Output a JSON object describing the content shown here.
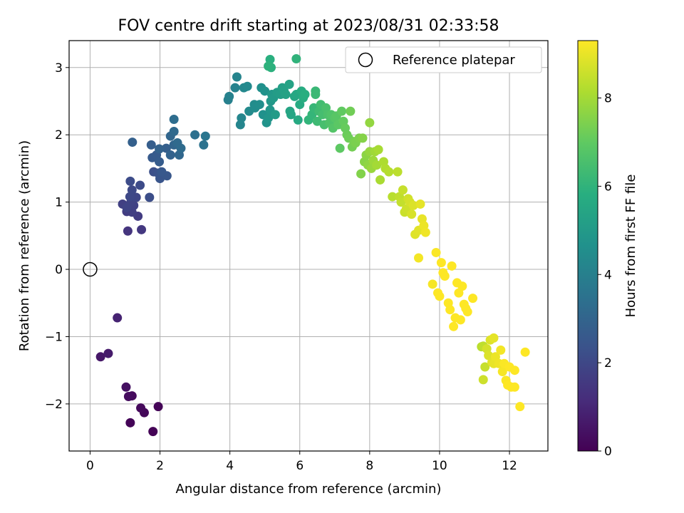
{
  "chart_data": {
    "type": "scatter",
    "title": "FOV centre drift starting at 2023/08/31 02:33:58",
    "xlabel": "Angular distance from reference (arcmin)",
    "ylabel": "Rotation from reference (arcmin)",
    "xlim": [
      -0.6,
      13.1
    ],
    "ylim": [
      -2.7,
      3.4
    ],
    "xticks": [
      0,
      2,
      4,
      6,
      8,
      10,
      12
    ],
    "yticks": [
      -2,
      -1,
      0,
      1,
      2,
      3
    ],
    "xtick_labels": [
      "0",
      "2",
      "4",
      "6",
      "8",
      "10",
      "12"
    ],
    "ytick_labels": [
      "−2",
      "−1",
      "0",
      "1",
      "2",
      "3"
    ],
    "grid": true,
    "legend": {
      "position": "top-right",
      "entries": [
        {
          "label": "Reference platepar",
          "marker": "open-circle",
          "x": 0,
          "y": 0
        }
      ]
    },
    "colorbar": {
      "label": "Hours from first FF file",
      "colormap": "viridis",
      "range": [
        0,
        9.3
      ],
      "ticks": [
        0,
        2,
        4,
        6,
        8
      ],
      "tick_labels": [
        "0",
        "2",
        "4",
        "6",
        "8"
      ]
    },
    "points": [
      [
        1.8,
        -2.41,
        0.05
      ],
      [
        1.15,
        -2.28,
        0.08
      ],
      [
        1.95,
        -2.04,
        0.1
      ],
      [
        1.55,
        -2.13,
        0.15
      ],
      [
        1.45,
        -2.06,
        0.2
      ],
      [
        1.2,
        -1.88,
        0.25
      ],
      [
        1.1,
        -1.89,
        0.3
      ],
      [
        1.03,
        -1.75,
        0.4
      ],
      [
        0.3,
        -1.3,
        0.6
      ],
      [
        0.52,
        -1.25,
        0.7
      ],
      [
        0.78,
        -0.72,
        0.9
      ],
      [
        1.08,
        0.57,
        1.4
      ],
      [
        1.47,
        0.59,
        1.5
      ],
      [
        1.37,
        0.79,
        1.6
      ],
      [
        1.05,
        0.86,
        1.65
      ],
      [
        1.2,
        0.85,
        1.7
      ],
      [
        0.93,
        0.97,
        1.75
      ],
      [
        1.25,
        0.95,
        1.8
      ],
      [
        1.17,
        1.0,
        1.85
      ],
      [
        1.05,
        0.92,
        1.9
      ],
      [
        1.32,
        1.07,
        1.95
      ],
      [
        1.14,
        1.08,
        2.0
      ],
      [
        1.2,
        1.18,
        2.05
      ],
      [
        1.43,
        1.25,
        2.1
      ],
      [
        1.15,
        1.31,
        2.15
      ],
      [
        1.7,
        1.07,
        2.2
      ],
      [
        1.82,
        1.45,
        2.25
      ],
      [
        1.95,
        1.43,
        2.35
      ],
      [
        2.0,
        1.35,
        2.45
      ],
      [
        2.2,
        1.39,
        2.5
      ],
      [
        2.05,
        1.45,
        2.55
      ],
      [
        1.78,
        1.66,
        2.6
      ],
      [
        1.9,
        1.7,
        2.65
      ],
      [
        1.98,
        1.6,
        2.7
      ],
      [
        1.75,
        1.85,
        2.75
      ],
      [
        2.18,
        1.8,
        2.8
      ],
      [
        1.21,
        1.89,
        2.85
      ],
      [
        1.98,
        1.79,
        2.9
      ],
      [
        2.3,
        1.7,
        2.95
      ],
      [
        2.4,
        1.85,
        3.0
      ],
      [
        2.3,
        1.98,
        3.05
      ],
      [
        2.55,
        1.7,
        3.1
      ],
      [
        2.4,
        2.05,
        3.15
      ],
      [
        2.5,
        1.88,
        3.2
      ],
      [
        2.6,
        1.8,
        3.25
      ],
      [
        2.4,
        2.23,
        3.3
      ],
      [
        3.0,
        2.0,
        3.4
      ],
      [
        3.25,
        1.85,
        3.5
      ],
      [
        3.3,
        1.98,
        3.6
      ],
      [
        3.95,
        2.52,
        4.0
      ],
      [
        3.98,
        2.57,
        4.05
      ],
      [
        4.15,
        2.7,
        4.1
      ],
      [
        4.2,
        2.86,
        4.15
      ],
      [
        4.3,
        2.15,
        4.2
      ],
      [
        4.33,
        2.25,
        4.25
      ],
      [
        4.4,
        2.7,
        4.3
      ],
      [
        4.5,
        2.72,
        4.35
      ],
      [
        4.55,
        2.35,
        4.4
      ],
      [
        4.7,
        2.45,
        4.45
      ],
      [
        4.72,
        2.4,
        4.5
      ],
      [
        4.85,
        2.45,
        4.55
      ],
      [
        4.9,
        2.7,
        4.6
      ],
      [
        4.95,
        2.3,
        4.65
      ],
      [
        5.0,
        2.65,
        4.7
      ],
      [
        5.05,
        2.18,
        4.75
      ],
      [
        5.1,
        2.25,
        4.8
      ],
      [
        5.15,
        2.37,
        4.85
      ],
      [
        5.17,
        2.5,
        4.9
      ],
      [
        5.2,
        2.6,
        4.95
      ],
      [
        5.25,
        2.55,
        5.0
      ],
      [
        5.3,
        2.3,
        5.05
      ],
      [
        5.35,
        2.63,
        5.1
      ],
      [
        5.45,
        2.6,
        5.15
      ],
      [
        5.5,
        2.7,
        5.2
      ],
      [
        5.55,
        2.65,
        5.25
      ],
      [
        5.6,
        2.6,
        5.3
      ],
      [
        5.7,
        2.75,
        5.35
      ],
      [
        5.72,
        2.35,
        5.4
      ],
      [
        5.75,
        2.3,
        5.45
      ],
      [
        5.85,
        2.57,
        5.5
      ],
      [
        5.9,
        2.6,
        5.55
      ],
      [
        5.95,
        2.22,
        5.6
      ],
      [
        6.0,
        2.45,
        5.65
      ],
      [
        6.05,
        2.65,
        5.7
      ],
      [
        6.1,
        2.55,
        5.75
      ],
      [
        6.15,
        2.6,
        5.8
      ],
      [
        5.15,
        3.12,
        5.85
      ],
      [
        5.18,
        3.0,
        5.9
      ],
      [
        5.1,
        3.02,
        5.95
      ],
      [
        5.9,
        3.13,
        6.0
      ],
      [
        6.25,
        2.22,
        6.05
      ],
      [
        6.35,
        2.3,
        6.1
      ],
      [
        6.4,
        2.4,
        6.15
      ],
      [
        6.45,
        2.65,
        6.2
      ],
      [
        6.45,
        2.6,
        6.25
      ],
      [
        6.5,
        2.2,
        6.3
      ],
      [
        6.55,
        2.35,
        6.35
      ],
      [
        6.6,
        2.45,
        6.4
      ],
      [
        6.65,
        2.3,
        6.45
      ],
      [
        6.7,
        2.15,
        6.5
      ],
      [
        6.75,
        2.4,
        6.55
      ],
      [
        6.8,
        2.3,
        6.6
      ],
      [
        6.85,
        2.18,
        6.65
      ],
      [
        6.9,
        2.3,
        6.7
      ],
      [
        6.95,
        2.1,
        6.75
      ],
      [
        7.0,
        2.25,
        6.8
      ],
      [
        7.05,
        2.28,
        6.85
      ],
      [
        7.1,
        2.15,
        6.9
      ],
      [
        7.15,
        1.8,
        6.95
      ],
      [
        7.2,
        2.35,
        7.0
      ],
      [
        7.25,
        2.2,
        7.05
      ],
      [
        7.3,
        2.1,
        7.1
      ],
      [
        7.35,
        2.0,
        7.15
      ],
      [
        7.4,
        1.95,
        7.2
      ],
      [
        7.45,
        2.35,
        7.25
      ],
      [
        7.5,
        1.82,
        7.3
      ],
      [
        7.55,
        1.9,
        7.35
      ],
      [
        7.6,
        1.88,
        7.4
      ],
      [
        7.7,
        1.95,
        7.45
      ],
      [
        7.75,
        1.42,
        7.5
      ],
      [
        7.8,
        1.95,
        7.55
      ],
      [
        7.85,
        1.6,
        7.6
      ],
      [
        7.9,
        1.7,
        7.65
      ],
      [
        7.95,
        1.55,
        7.7
      ],
      [
        8.0,
        2.18,
        7.75
      ],
      [
        8.0,
        1.75,
        7.8
      ],
      [
        8.05,
        1.5,
        7.85
      ],
      [
        8.1,
        1.62,
        7.9
      ],
      [
        8.15,
        1.75,
        7.95
      ],
      [
        8.2,
        1.55,
        8.0
      ],
      [
        8.25,
        1.78,
        8.05
      ],
      [
        8.3,
        1.33,
        8.1
      ],
      [
        8.4,
        1.6,
        8.15
      ],
      [
        8.45,
        1.5,
        8.2
      ],
      [
        8.55,
        1.45,
        8.25
      ],
      [
        8.65,
        1.08,
        8.3
      ],
      [
        8.8,
        1.45,
        8.35
      ],
      [
        8.85,
        1.08,
        8.4
      ],
      [
        8.9,
        1.0,
        8.45
      ],
      [
        8.95,
        1.18,
        8.5
      ],
      [
        9.0,
        0.85,
        8.55
      ],
      [
        9.05,
        0.9,
        8.6
      ],
      [
        9.1,
        1.05,
        8.65
      ],
      [
        9.15,
        1.0,
        8.7
      ],
      [
        9.2,
        0.82,
        8.75
      ],
      [
        9.25,
        0.95,
        8.8
      ],
      [
        9.3,
        0.52,
        8.85
      ],
      [
        9.4,
        0.58,
        8.9
      ],
      [
        9.45,
        0.97,
        8.95
      ],
      [
        9.5,
        0.75,
        9.0
      ],
      [
        9.55,
        0.65,
        9.05
      ],
      [
        9.6,
        0.55,
        9.1
      ],
      [
        9.4,
        0.17,
        9.15
      ],
      [
        9.8,
        -0.22,
        9.2
      ],
      [
        9.9,
        0.25,
        9.25
      ],
      [
        9.95,
        -0.35,
        9.3
      ],
      [
        10.0,
        -0.4,
        9.35
      ],
      [
        10.05,
        0.1,
        9.4
      ],
      [
        10.1,
        -0.05,
        9.45
      ],
      [
        10.15,
        -0.1,
        9.5
      ],
      [
        10.25,
        -0.5,
        9.55
      ],
      [
        10.3,
        -0.6,
        9.6
      ],
      [
        10.35,
        0.05,
        9.65
      ],
      [
        10.4,
        -0.85,
        9.7
      ],
      [
        10.45,
        -0.72,
        9.75
      ],
      [
        10.5,
        -0.2,
        9.8
      ],
      [
        10.55,
        -0.35,
        9.85
      ],
      [
        10.6,
        -0.75,
        9.9
      ],
      [
        10.65,
        -0.25,
        9.95
      ],
      [
        10.7,
        -0.52,
        10.0
      ],
      [
        10.75,
        -0.58,
        10.05
      ],
      [
        10.8,
        -0.63,
        10.1
      ],
      [
        10.95,
        -0.43,
        10.15
      ],
      [
        11.2,
        -1.15,
        8.3
      ],
      [
        11.25,
        -1.14,
        8.4
      ],
      [
        11.3,
        -1.45,
        8.5
      ],
      [
        11.25,
        -1.64,
        8.6
      ],
      [
        11.35,
        -1.18,
        8.7
      ],
      [
        11.4,
        -1.28,
        8.8
      ],
      [
        11.45,
        -1.05,
        8.85
      ],
      [
        11.5,
        -1.38,
        8.9
      ],
      [
        11.55,
        -1.02,
        8.95
      ],
      [
        11.55,
        -1.4,
        9.0
      ],
      [
        11.6,
        -1.3,
        9.05
      ],
      [
        11.7,
        -1.4,
        9.1
      ],
      [
        11.75,
        -1.2,
        9.15
      ],
      [
        11.8,
        -1.52,
        9.2
      ],
      [
        11.85,
        -1.4,
        9.25
      ],
      [
        11.9,
        -1.65,
        9.25
      ],
      [
        11.95,
        -1.72,
        9.3
      ],
      [
        12.0,
        -1.45,
        9.3
      ],
      [
        12.05,
        -1.75,
        9.3
      ],
      [
        12.15,
        -1.75,
        9.3
      ],
      [
        12.15,
        -1.5,
        9.3
      ],
      [
        12.3,
        -2.04,
        9.3
      ],
      [
        12.45,
        -1.23,
        9.3
      ]
    ]
  }
}
